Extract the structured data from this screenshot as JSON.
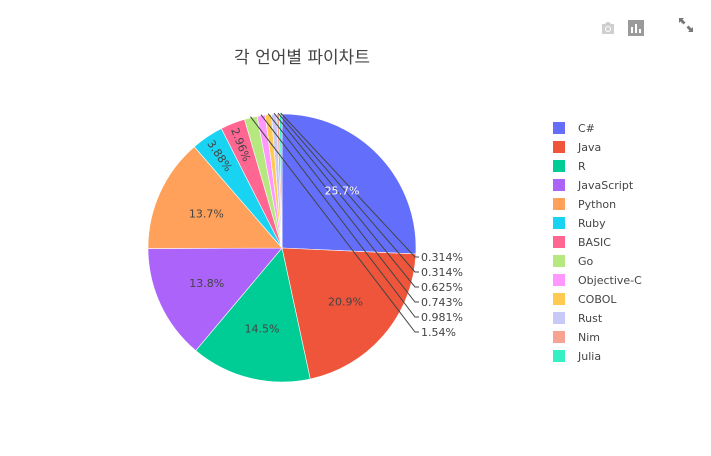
{
  "toolbar": {
    "icons": [
      "camera-icon",
      "bar-chart-icon",
      "expand-icon"
    ]
  },
  "chart_data": {
    "type": "pie",
    "title": "각 언어별 파이차트",
    "labels": [
      "C#",
      "Java",
      "R",
      "JavaScript",
      "Python",
      "Ruby",
      "BASIC",
      "Go",
      "Objective-C",
      "COBOL",
      "Rust",
      "Nim",
      "Julia"
    ],
    "values": [
      25.7,
      20.9,
      14.5,
      13.8,
      13.7,
      3.88,
      2.96,
      1.54,
      0.981,
      0.743,
      0.625,
      0.314,
      0.314
    ],
    "value_labels": [
      "25.7%",
      "20.9%",
      "14.5%",
      "13.8%",
      "13.7%",
      "3.88%",
      "2.96%",
      "1.54%",
      "0.981%",
      "0.743%",
      "0.625%",
      "0.314%",
      "0.314%"
    ],
    "colors": [
      "#636efa",
      "#ef553b",
      "#00cc96",
      "#ab63fa",
      "#ffa15a",
      "#19d3f3",
      "#ff6692",
      "#b6e880",
      "#ff97ff",
      "#fecb52",
      "#c8c9f7",
      "#f6a394",
      "#34f0c4"
    ],
    "legend_position": "right"
  }
}
